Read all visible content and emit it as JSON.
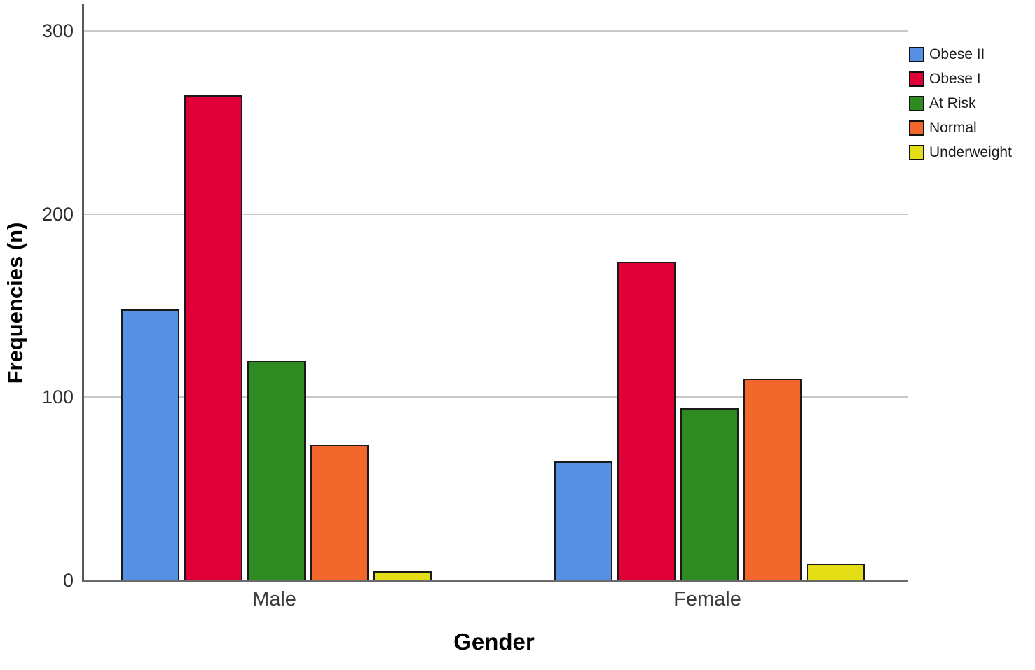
{
  "chart_data": {
    "type": "bar",
    "title": "",
    "xlabel": "Gender",
    "ylabel": "Frequencies (n)",
    "categories": [
      "Male",
      "Female"
    ],
    "series": [
      {
        "name": "Obese II",
        "color": "#5590E2",
        "values": [
          148,
          65
        ]
      },
      {
        "name": "Obese I",
        "color": "#E00037",
        "values": [
          265,
          174
        ]
      },
      {
        "name": "At Risk",
        "color": "#2E8B22",
        "values": [
          120,
          94
        ]
      },
      {
        "name": "Normal",
        "color": "#F2672B",
        "values": [
          74,
          110
        ]
      },
      {
        "name": "Underweight",
        "color": "#E3DE16",
        "values": [
          5,
          9
        ]
      }
    ],
    "yticks": [
      0,
      100,
      200,
      300
    ],
    "ylim": [
      0,
      315
    ],
    "grid": true,
    "legend_position": "right",
    "colors": {
      "bar_border": "#1a1a1a",
      "gridline": "#c9c9c9",
      "axis_line": "#595959",
      "tick_text": "#2e2e2e"
    }
  }
}
